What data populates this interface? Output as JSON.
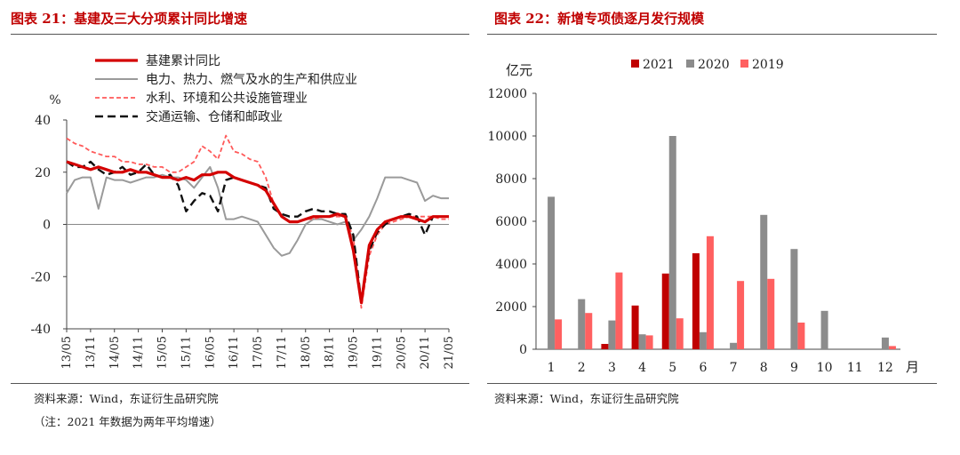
{
  "left": {
    "title": "图表 21：基建及三大分项累计同比增速",
    "source": "资料来源：Wind，东证衍生品研究院",
    "footnote": "（注：2021 年数据为两年平均增速）",
    "chart_data": {
      "type": "line",
      "ylabel": "%",
      "ylim": [
        -40,
        40
      ],
      "yticks": [
        -40,
        -20,
        0,
        20,
        40
      ],
      "xlabels": [
        "13/05",
        "13/11",
        "14/05",
        "14/11",
        "15/05",
        "15/11",
        "16/05",
        "16/11",
        "17/05",
        "17/11",
        "18/05",
        "18/11",
        "19/05",
        "19/11",
        "20/05",
        "20/11",
        "21/05"
      ],
      "series": [
        {
          "name": "基建累计同比",
          "color": "#d40000",
          "style": "solid-thick",
          "x": [
            0,
            2,
            4,
            6,
            8,
            10,
            12,
            14,
            16,
            18,
            20,
            22,
            24,
            26,
            28,
            30,
            32,
            34,
            36,
            38,
            40,
            42,
            44,
            46,
            48,
            50,
            52,
            54,
            56,
            58,
            60,
            62,
            64,
            66,
            68,
            70,
            72,
            74,
            76,
            78,
            80,
            82,
            84,
            86,
            88,
            90,
            92,
            94,
            96
          ],
          "values": [
            24,
            23,
            22,
            21,
            22,
            21,
            20,
            20,
            21,
            20,
            20,
            19,
            18,
            18,
            17,
            18,
            17,
            19,
            19,
            20,
            20,
            18,
            17,
            16,
            15,
            13,
            8,
            3,
            1,
            1,
            2,
            3,
            3,
            3,
            4,
            3,
            -10,
            -30,
            -8,
            -2,
            1,
            2,
            3,
            3,
            2,
            1,
            3,
            3,
            3
          ]
        },
        {
          "name": "电力、热力、燃气及水的生产和供应业",
          "color": "#9a9a9a",
          "style": "solid",
          "x": [
            0,
            2,
            4,
            6,
            8,
            10,
            12,
            14,
            16,
            18,
            20,
            22,
            24,
            26,
            28,
            30,
            32,
            34,
            36,
            38,
            40,
            42,
            44,
            46,
            48,
            50,
            52,
            54,
            56,
            58,
            60,
            62,
            64,
            66,
            68,
            70,
            72,
            74,
            76,
            78,
            80,
            82,
            84,
            86,
            88,
            90,
            92,
            94,
            96
          ],
          "values": [
            12,
            17,
            18,
            18,
            6,
            18,
            17,
            17,
            16,
            17,
            18,
            18,
            19,
            18,
            18,
            17,
            14,
            18,
            22,
            14,
            2,
            2,
            3,
            2,
            1,
            -4,
            -9,
            -12,
            -11,
            -6,
            0,
            2,
            2,
            1,
            0,
            1,
            -6,
            -2,
            3,
            10,
            18,
            18,
            18,
            17,
            16,
            9,
            11,
            10,
            10
          ]
        },
        {
          "name": "水利、环境和公共设施管理业",
          "color": "#ff5a5a",
          "style": "dash",
          "x": [
            0,
            2,
            4,
            6,
            8,
            10,
            12,
            14,
            16,
            18,
            20,
            22,
            24,
            26,
            28,
            30,
            32,
            34,
            36,
            38,
            40,
            42,
            44,
            46,
            48,
            50,
            52,
            54,
            56,
            58,
            60,
            62,
            64,
            66,
            68,
            70,
            72,
            74,
            76,
            78,
            80,
            82,
            84,
            86,
            88,
            90,
            92,
            94,
            96
          ],
          "values": [
            33,
            31,
            30,
            28,
            27,
            26,
            26,
            24,
            24,
            23,
            23,
            22,
            22,
            20,
            20,
            22,
            24,
            30,
            28,
            25,
            34,
            28,
            27,
            25,
            24,
            18,
            8,
            3,
            1,
            1,
            2,
            2,
            3,
            3,
            3,
            3,
            -5,
            -32,
            -12,
            -4,
            0,
            1,
            2,
            3,
            3,
            3,
            3,
            2,
            2
          ]
        },
        {
          "name": "交通运输、仓储和邮政业",
          "color": "#111111",
          "style": "dash-thick",
          "x": [
            0,
            2,
            4,
            6,
            8,
            10,
            12,
            14,
            16,
            18,
            20,
            22,
            24,
            26,
            28,
            30,
            32,
            34,
            36,
            38,
            40,
            42,
            44,
            46,
            48,
            50,
            52,
            54,
            56,
            58,
            60,
            62,
            64,
            66,
            68,
            70,
            72,
            74,
            76,
            78,
            80,
            82,
            84,
            86,
            88,
            90,
            92,
            94,
            96
          ],
          "values": [
            24,
            22,
            22,
            24,
            21,
            19,
            20,
            22,
            19,
            20,
            23,
            19,
            18,
            19,
            15,
            5,
            9,
            12,
            11,
            5,
            17,
            18,
            17,
            16,
            15,
            14,
            6,
            4,
            3,
            3,
            5,
            6,
            5,
            5,
            4,
            4,
            -4,
            -30,
            -10,
            -3,
            0,
            2,
            3,
            4,
            3,
            -4,
            3,
            3,
            3
          ]
        }
      ]
    }
  },
  "right": {
    "title": "图表 22：新增专项债逐月发行规模",
    "source": "资料来源：Wind，东证衍生品研究院",
    "chart_data": {
      "type": "bar",
      "ylabel": "亿元",
      "xlabel": "月",
      "ylim": [
        0,
        12000
      ],
      "yticks": [
        0,
        2000,
        4000,
        6000,
        8000,
        10000,
        12000
      ],
      "categories": [
        "1",
        "2",
        "3",
        "4",
        "5",
        "6",
        "7",
        "8",
        "9",
        "10",
        "11",
        "12"
      ],
      "series": [
        {
          "name": "2021",
          "color": "#c00000",
          "values": [
            0,
            0,
            250,
            2050,
            3550,
            4500,
            0,
            0,
            0,
            0,
            0,
            0
          ]
        },
        {
          "name": "2020",
          "color": "#8c8c8c",
          "values": [
            7150,
            2350,
            1350,
            700,
            10000,
            800,
            300,
            6300,
            4700,
            1800,
            0,
            550
          ]
        },
        {
          "name": "2019",
          "color": "#ff6060",
          "values": [
            1400,
            1700,
            3600,
            650,
            1450,
            5300,
            3200,
            3300,
            1250,
            0,
            0,
            150
          ]
        }
      ]
    }
  }
}
